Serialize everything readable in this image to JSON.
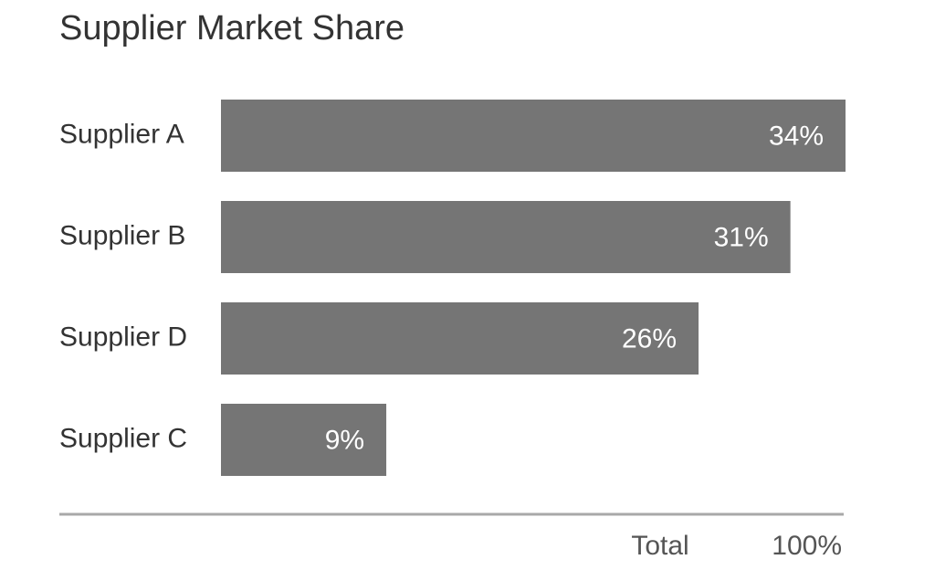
{
  "chart_data": {
    "type": "bar",
    "orientation": "horizontal",
    "title": "Supplier Market Share",
    "categories": [
      "Supplier A",
      "Supplier B",
      "Supplier D",
      "Supplier C"
    ],
    "values": [
      34,
      31,
      26,
      9
    ],
    "value_labels": [
      "34%",
      "31%",
      "26%",
      "9%"
    ],
    "color": "#757575",
    "total_label": "Total",
    "total": {
      "value": 100,
      "label": "100%"
    }
  }
}
